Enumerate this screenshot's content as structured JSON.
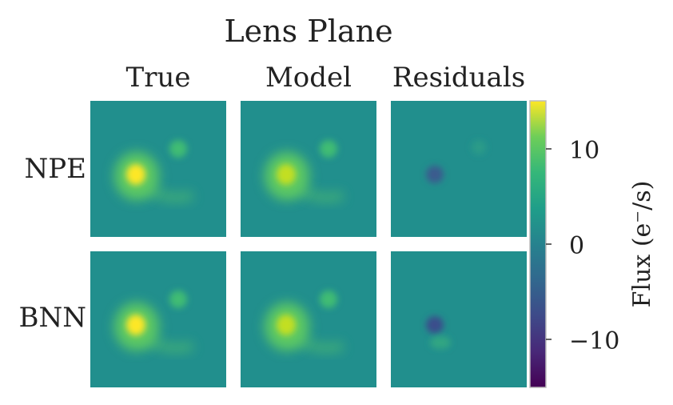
{
  "title": "Lens Plane",
  "chart_data": {
    "type": "heatmap",
    "title": "Lens Plane",
    "columns": [
      "True",
      "Model",
      "Residuals"
    ],
    "rows": [
      "NPE",
      "BNN"
    ],
    "colorbar": {
      "label": "Flux (e⁻/s)",
      "colormap": "viridis",
      "range": [
        -15,
        15
      ],
      "ticks": [
        10,
        0,
        -10
      ],
      "tick_labels": [
        "10",
        "0",
        "−10"
      ]
    },
    "background_color": "#218f8d",
    "panels": [
      {
        "row": "NPE",
        "column": "True",
        "peak_flux": 14
      },
      {
        "row": "NPE",
        "column": "Model",
        "peak_flux": 12.5
      },
      {
        "row": "NPE",
        "column": "Residuals",
        "min_flux": -6
      },
      {
        "row": "BNN",
        "column": "True",
        "peak_flux": 14
      },
      {
        "row": "BNN",
        "column": "Model",
        "peak_flux": 13
      },
      {
        "row": "BNN",
        "column": "Residuals",
        "min_flux": -7,
        "positive_flux": 3
      }
    ]
  }
}
